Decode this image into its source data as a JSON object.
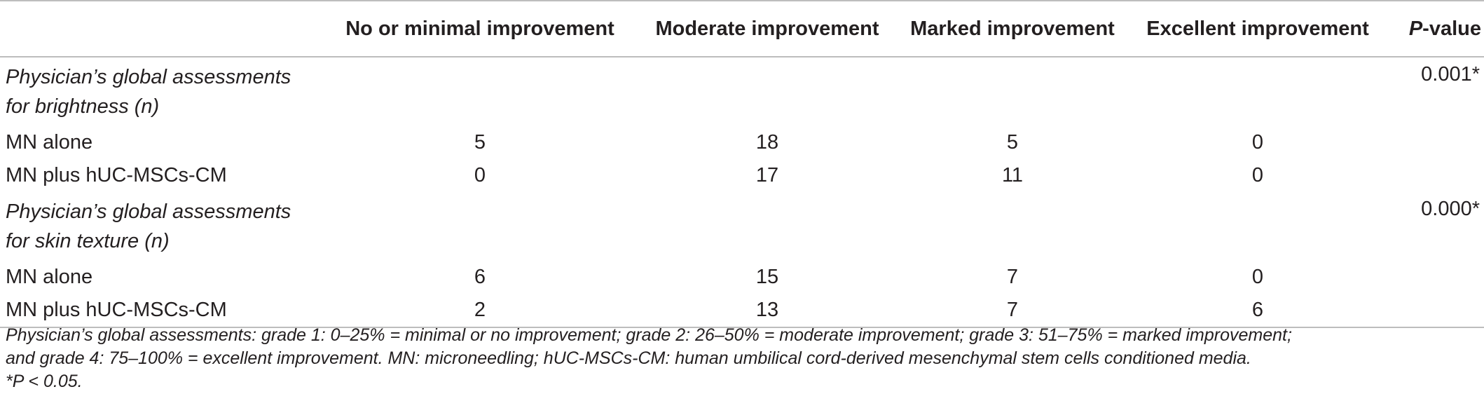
{
  "table": {
    "headers": [
      "",
      "No or minimal improvement",
      "Moderate improvement",
      "Marked improvement",
      "Excellent improvement"
    ],
    "pvalue_header": {
      "italic_part": "P",
      "rest": "-value"
    },
    "sections": [
      {
        "title_line1": "Physician’s global assessments",
        "title_line2": "for brightness (n)",
        "pvalue": "0.001*",
        "rows": [
          {
            "label": "MN alone",
            "values": [
              "5",
              "18",
              "5",
              "0"
            ]
          },
          {
            "label": "MN plus hUC-MSCs-CM",
            "values": [
              "0",
              "17",
              "11",
              "0"
            ]
          }
        ]
      },
      {
        "title_line1": "Physician’s global assessments",
        "title_line2": "for skin texture (n)",
        "pvalue": "0.000*",
        "rows": [
          {
            "label": "MN alone",
            "values": [
              "6",
              "15",
              "7",
              "0"
            ]
          },
          {
            "label": "MN plus hUC-MSCs-CM",
            "values": [
              "2",
              "13",
              "7",
              "6"
            ]
          }
        ]
      }
    ]
  },
  "footnote": {
    "line1": "Physician’s global assessments: grade 1: 0–25% = minimal or no improvement; grade 2: 26–50% = moderate improvement; grade 3: 51–75% = marked improvement;",
    "line2": "and grade 4: 75–100% = excellent improvement. MN: microneedling; hUC-MSCs-CM: human umbilical cord-derived mesenchymal stem cells conditioned media.",
    "line3": "*P < 0.05."
  }
}
